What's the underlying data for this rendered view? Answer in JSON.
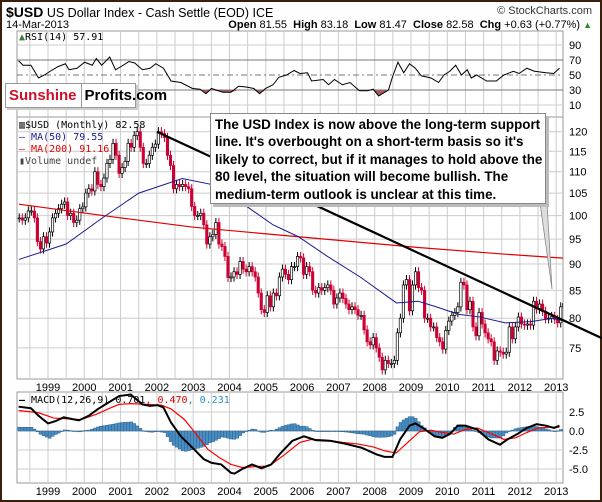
{
  "header": {
    "symbol": "$USD",
    "name": "US Dollar Index - Cash Settle (EOD) ICE",
    "copyright": "© StockCharts.com",
    "date": "14-Mar-2013",
    "open_label": "Open",
    "open": "81.55",
    "high_label": "High",
    "high": "83.18",
    "low_label": "Low",
    "low": "81.47",
    "close_label": "Close",
    "close": "82.58",
    "chg_label": "Chg",
    "chg": "+0.63 (+0.77%)",
    "chg_arrow": "▲"
  },
  "logo": {
    "part1": "Sunshine",
    "part2": "Profits.com"
  },
  "annotation": {
    "lines": [
      "The USD Index is now above the long-term support",
      "line. It's overbought on a short-term basis so it's",
      "likely to correct, but if it manages to hold above the",
      "80 level, the situation will become bullish. The",
      "medium-term outlook is unclear at this time."
    ]
  },
  "colors": {
    "up_candle": "#000000",
    "down_candle": "#cc0033",
    "ma50": "#1a1a8c",
    "ma200": "#e00000",
    "macd": "#000000",
    "signal": "#ff0000",
    "histogram": "#4a8fc4",
    "rsi_oversold_fill": "#a06060",
    "grid": "#cccccc"
  },
  "chart_data": [
    {
      "type": "line",
      "panel": "RSI",
      "legend": "RSI(14) 57.91",
      "ylim": [
        0,
        100
      ],
      "yticks": [
        "90",
        "70",
        "50",
        "30",
        "10"
      ],
      "series": [
        {
          "name": "RSI(14)",
          "points": [
            [
              1998.19,
              69
            ],
            [
              1998.31,
              63
            ],
            [
              1998.53,
              63
            ],
            [
              1998.74,
              46
            ],
            [
              1998.9,
              50
            ],
            [
              1999.06,
              55
            ],
            [
              1999.27,
              61
            ],
            [
              1999.48,
              65
            ],
            [
              1999.58,
              57
            ],
            [
              1999.8,
              59
            ],
            [
              2000.01,
              67
            ],
            [
              2000.22,
              63
            ],
            [
              2000.33,
              72
            ],
            [
              2000.48,
              63
            ],
            [
              2000.7,
              74
            ],
            [
              2000.86,
              57
            ],
            [
              2001.07,
              63
            ],
            [
              2001.23,
              68
            ],
            [
              2001.39,
              66
            ],
            [
              2001.6,
              57
            ],
            [
              2001.81,
              59
            ],
            [
              2001.97,
              65
            ],
            [
              2002.18,
              59
            ],
            [
              2002.39,
              42
            ],
            [
              2002.66,
              40
            ],
            [
              2002.98,
              32
            ],
            [
              2003.19,
              31
            ],
            [
              2003.35,
              25
            ],
            [
              2003.5,
              32
            ],
            [
              2003.82,
              27
            ],
            [
              2004.04,
              27
            ],
            [
              2004.25,
              35
            ],
            [
              2004.46,
              34
            ],
            [
              2004.67,
              32
            ],
            [
              2004.83,
              25
            ],
            [
              2004.99,
              32
            ],
            [
              2005.2,
              37
            ],
            [
              2005.36,
              47
            ],
            [
              2005.57,
              50
            ],
            [
              2005.78,
              56
            ],
            [
              2005.94,
              52
            ],
            [
              2006.15,
              53
            ],
            [
              2006.26,
              42
            ],
            [
              2006.58,
              44
            ],
            [
              2006.73,
              37
            ],
            [
              2006.89,
              44
            ],
            [
              2007.11,
              37
            ],
            [
              2007.32,
              40
            ],
            [
              2007.58,
              29
            ],
            [
              2007.8,
              29
            ],
            [
              2007.96,
              31
            ],
            [
              2008.11,
              22
            ],
            [
              2008.38,
              30
            ],
            [
              2008.48,
              46
            ],
            [
              2008.64,
              67
            ],
            [
              2008.8,
              53
            ],
            [
              2008.96,
              65
            ],
            [
              2009.12,
              59
            ],
            [
              2009.28,
              49
            ],
            [
              2009.55,
              46
            ],
            [
              2009.76,
              40
            ],
            [
              2009.91,
              50
            ],
            [
              2010.07,
              55
            ],
            [
              2010.23,
              63
            ],
            [
              2010.39,
              50
            ],
            [
              2010.55,
              57
            ],
            [
              2010.66,
              46
            ],
            [
              2010.81,
              50
            ],
            [
              2011.08,
              42
            ],
            [
              2011.19,
              42
            ],
            [
              2011.35,
              42
            ],
            [
              2011.56,
              50
            ],
            [
              2011.82,
              55
            ],
            [
              2011.98,
              52
            ],
            [
              2012.19,
              59
            ],
            [
              2012.4,
              55
            ],
            [
              2012.72,
              53
            ],
            [
              2012.93,
              52
            ],
            [
              2013.09,
              59
            ]
          ]
        }
      ]
    },
    {
      "type": "candlestick",
      "panel": "price",
      "scale": "log",
      "legend": [
        "$USD (Monthly) 82.58",
        "MA(50) 79.55",
        "MA(200) 91.16",
        "Volume undef"
      ],
      "yticks": [
        "120",
        "115",
        "110",
        "105",
        "100",
        "95",
        "90",
        "85",
        "80",
        "75"
      ],
      "xticks": [
        "1999",
        "2000",
        "2001",
        "2002",
        "2003",
        "2004",
        "2005",
        "2006",
        "2007",
        "2008",
        "2009",
        "2010",
        "2011",
        "2012",
        "2013"
      ],
      "monthly_closes": {
        "1998": [
          null,
          null,
          99.5,
          99,
          99.5,
          101,
          101,
          99.5,
          94.5,
          93,
          95.5,
          94.2
        ],
        "1999": [
          96.5,
          99.5,
          100.5,
          101.5,
          102.5,
          103,
          100,
          100.5,
          98.5,
          99,
          101.5,
          101.9
        ],
        "2000": [
          105,
          106,
          105.5,
          110,
          107,
          106.5,
          108.5,
          112,
          113,
          117,
          114,
          109.6
        ],
        "2001": [
          111,
          112.5,
          117,
          116,
          119,
          120,
          116,
          112,
          112,
          114,
          116,
          116.8
        ],
        "2002": [
          120,
          119.5,
          118.5,
          114,
          111.5,
          106,
          107,
          106.5,
          107,
          106.5,
          106,
          102
        ],
        "2003": [
          100,
          100,
          100.5,
          98,
          94,
          95.5,
          96,
          98.5,
          94,
          93.5,
          91.5,
          87.4
        ],
        "2004": [
          87.5,
          88.5,
          88,
          90.5,
          89,
          88.5,
          89.5,
          88.5,
          87.5,
          84.5,
          81.5,
          81
        ],
        "2005": [
          84,
          82,
          84.5,
          84,
          87.5,
          89,
          88,
          87,
          89.5,
          89.5,
          91.5,
          91.2
        ],
        "2006": [
          88,
          89.5,
          88.5,
          85,
          84.5,
          85.5,
          85,
          85.5,
          86,
          85,
          82.5,
          83.6
        ],
        "2007": [
          84.5,
          83.5,
          82.5,
          81.5,
          82,
          81.5,
          80.5,
          80.5,
          78,
          76,
          75.5,
          76.7
        ],
        "2008": [
          75,
          73.5,
          71.5,
          73,
          72.5,
          72.5,
          73,
          77.5,
          80,
          86,
          87,
          81.3
        ],
        "2009": [
          86,
          88.5,
          85.5,
          85,
          80,
          80,
          78.5,
          78.5,
          76.7,
          76,
          74.8,
          77.9
        ],
        "2010": [
          79.5,
          80.5,
          81,
          82,
          86.5,
          86,
          81.5,
          83,
          78.5,
          77,
          81,
          79
        ],
        "2011": [
          77.5,
          76.5,
          76,
          73,
          74.5,
          74.3,
          74,
          74.3,
          78.5,
          76.5,
          78.5,
          80.2
        ],
        "2012": [
          79,
          78.8,
          79,
          78.8,
          83,
          81.6,
          82.5,
          81.2,
          79.9,
          80,
          80.3,
          79.8
        ],
        "2013": [
          79.2,
          82,
          82.58
        ]
      },
      "ma50": [
        [
          1998.2,
          90.9
        ],
        [
          1999.5,
          94
        ],
        [
          2000.5,
          99.5
        ],
        [
          2001.5,
          105
        ],
        [
          2002.7,
          108.4
        ],
        [
          2003.5,
          107
        ],
        [
          2004.3,
          103
        ],
        [
          2005.2,
          98
        ],
        [
          2005.9,
          95.5
        ],
        [
          2006.7,
          91.5
        ],
        [
          2007.6,
          87.5
        ],
        [
          2008.6,
          82.7
        ],
        [
          2009.2,
          83
        ],
        [
          2009.7,
          82
        ],
        [
          2010.3,
          80.7
        ],
        [
          2010.9,
          80.2
        ],
        [
          2011.6,
          79.2
        ],
        [
          2012.3,
          79.4
        ],
        [
          2012.9,
          80
        ],
        [
          2013.2,
          79.55
        ]
      ],
      "ma200": [
        [
          1998.2,
          102.5
        ],
        [
          2000.8,
          99.7
        ],
        [
          2003,
          97.5
        ],
        [
          2005.9,
          95.5
        ],
        [
          2009.2,
          93.3
        ],
        [
          2011.5,
          92
        ],
        [
          2013.2,
          91.16
        ]
      ],
      "trendline": [
        [
          2002.0,
          120
        ],
        [
          2014.26,
          76.6
        ]
      ]
    },
    {
      "type": "line+histogram",
      "panel": "MACD",
      "legend": [
        "MACD(12,26,9) 0.701",
        ", 0.470",
        ", 0.231"
      ],
      "yticks": [
        "2.5",
        "0.0",
        "-2.5",
        "-5.0"
      ],
      "macd": [
        [
          1998.19,
          3.2
        ],
        [
          1998.53,
          3.0
        ],
        [
          1998.74,
          2.0
        ],
        [
          1999.0,
          1.0
        ],
        [
          1999.21,
          1.3
        ],
        [
          1999.43,
          1.8
        ],
        [
          1999.64,
          1.6
        ],
        [
          1999.85,
          1.4
        ],
        [
          2000.12,
          2.0
        ],
        [
          2000.38,
          2.9
        ],
        [
          2000.65,
          3.7
        ],
        [
          2000.96,
          4.6
        ],
        [
          2001.28,
          4.8
        ],
        [
          2001.6,
          3.5
        ],
        [
          2001.81,
          3.3
        ],
        [
          2002.02,
          3.4
        ],
        [
          2002.18,
          3.1
        ],
        [
          2002.39,
          1.1
        ],
        [
          2002.66,
          -0.7
        ],
        [
          2002.98,
          -2.2
        ],
        [
          2003.29,
          -3.7
        ],
        [
          2003.51,
          -4.2
        ],
        [
          2003.77,
          -4.4
        ],
        [
          2004.04,
          -5.5
        ],
        [
          2004.14,
          -5.6
        ],
        [
          2004.35,
          -5.0
        ],
        [
          2004.62,
          -4.4
        ],
        [
          2004.88,
          -4.9
        ],
        [
          2005.15,
          -4.4
        ],
        [
          2005.41,
          -2.9
        ],
        [
          2005.73,
          -1.3
        ],
        [
          2006.05,
          -0.7
        ],
        [
          2006.37,
          -1.2
        ],
        [
          2006.79,
          -1.3
        ],
        [
          2007.21,
          -1.7
        ],
        [
          2007.64,
          -2.2
        ],
        [
          2008.06,
          -3.1
        ],
        [
          2008.27,
          -3.4
        ],
        [
          2008.49,
          -3.4
        ],
        [
          2008.7,
          -1.1
        ],
        [
          2008.96,
          0.7
        ],
        [
          2009.12,
          1.0
        ],
        [
          2009.33,
          0.4
        ],
        [
          2009.65,
          -0.7
        ],
        [
          2009.86,
          -0.9
        ],
        [
          2010.07,
          -0.4
        ],
        [
          2010.29,
          0.7
        ],
        [
          2010.5,
          0.7
        ],
        [
          2010.82,
          0.2
        ],
        [
          2011.13,
          -1.1
        ],
        [
          2011.45,
          -1.8
        ],
        [
          2011.66,
          -1.1
        ],
        [
          2011.93,
          -0.4
        ],
        [
          2012.19,
          0.4
        ],
        [
          2012.46,
          0.9
        ],
        [
          2012.72,
          0.7
        ],
        [
          2012.94,
          0.4
        ],
        [
          2013.09,
          0.7
        ]
      ],
      "signal": [
        [
          1998.19,
          2.7
        ],
        [
          1998.74,
          2.4
        ],
        [
          1999.16,
          1.7
        ],
        [
          1999.59,
          1.6
        ],
        [
          1999.9,
          1.5
        ],
        [
          2000.33,
          2.2
        ],
        [
          2000.75,
          3.1
        ],
        [
          2000.96,
          3.5
        ],
        [
          2001.28,
          3.6
        ],
        [
          2001.7,
          3.5
        ],
        [
          2002.13,
          3.4
        ],
        [
          2002.39,
          2.9
        ],
        [
          2002.76,
          1.5
        ],
        [
          2003.08,
          -0.4
        ],
        [
          2003.4,
          -2.4
        ],
        [
          2003.72,
          -3.5
        ],
        [
          2004.04,
          -4.4
        ],
        [
          2004.35,
          -4.8
        ],
        [
          2004.67,
          -4.7
        ],
        [
          2005.1,
          -4.6
        ],
        [
          2005.52,
          -3.1
        ],
        [
          2005.94,
          -1.5
        ],
        [
          2006.26,
          -1.1
        ],
        [
          2006.68,
          -1.2
        ],
        [
          2007.11,
          -1.5
        ],
        [
          2007.53,
          -1.7
        ],
        [
          2007.96,
          -2.1
        ],
        [
          2008.27,
          -2.6
        ],
        [
          2008.59,
          -2.9
        ],
        [
          2008.91,
          -1.5
        ],
        [
          2009.23,
          -0.1
        ],
        [
          2009.55,
          0.1
        ],
        [
          2009.86,
          -0.2
        ],
        [
          2010.18,
          -0.4
        ],
        [
          2010.5,
          0.2
        ],
        [
          2010.82,
          0.4
        ],
        [
          2011.13,
          -0.2
        ],
        [
          2011.56,
          -1.1
        ],
        [
          2011.88,
          -0.9
        ],
        [
          2012.19,
          -0.2
        ],
        [
          2012.51,
          0.4
        ],
        [
          2012.83,
          0.5
        ],
        [
          2013.09,
          0.5
        ]
      ]
    }
  ]
}
